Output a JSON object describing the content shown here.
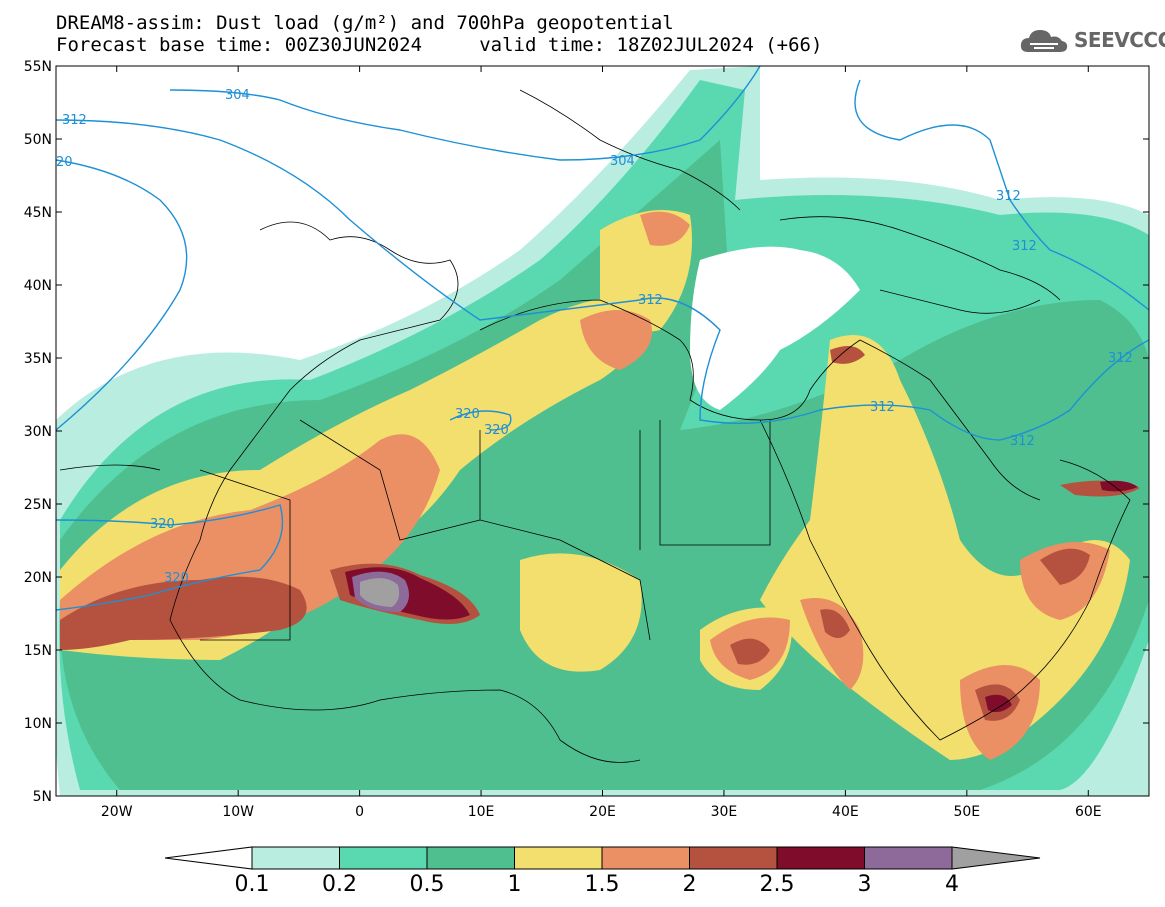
{
  "title": {
    "line1": "DREAM8-assim: Dust load (g/m²) and 700hPa geopotential",
    "line2": "Forecast base time: 00Z30JUN2024     valid time: 18Z02JUL2024 (+66)"
  },
  "logo": {
    "text": "SEEVCCC",
    "icon": "cloud-icon"
  },
  "map": {
    "lon_range": [
      -25,
      65
    ],
    "lat_range": [
      5,
      55
    ],
    "lat_ticks": [
      "55N",
      "50N",
      "45N",
      "40N",
      "35N",
      "30N",
      "25N",
      "20N",
      "15N",
      "10N",
      "5N"
    ],
    "lon_ticks": [
      "20W",
      "10W",
      "0",
      "10E",
      "20E",
      "30E",
      "40E",
      "50E",
      "60E"
    ],
    "contour_color": "#1e90d6",
    "contour_labels": [
      "312",
      "304",
      "20",
      "312",
      "304",
      "312",
      "312",
      "312",
      "312",
      "320",
      "320",
      "312",
      "312",
      "320",
      "320"
    ]
  },
  "colorbar": {
    "levels": [
      "0.1",
      "0.2",
      "0.5",
      "1",
      "1.5",
      "2",
      "2.5",
      "3",
      "4"
    ],
    "colors": [
      "#ffffff",
      "#b8ede0",
      "#5ad9b0",
      "#4fbf90",
      "#f3df6e",
      "#ea9064",
      "#b5523f",
      "#7f0c2b",
      "#8e6a9b",
      "#a0a0a0"
    ]
  }
}
